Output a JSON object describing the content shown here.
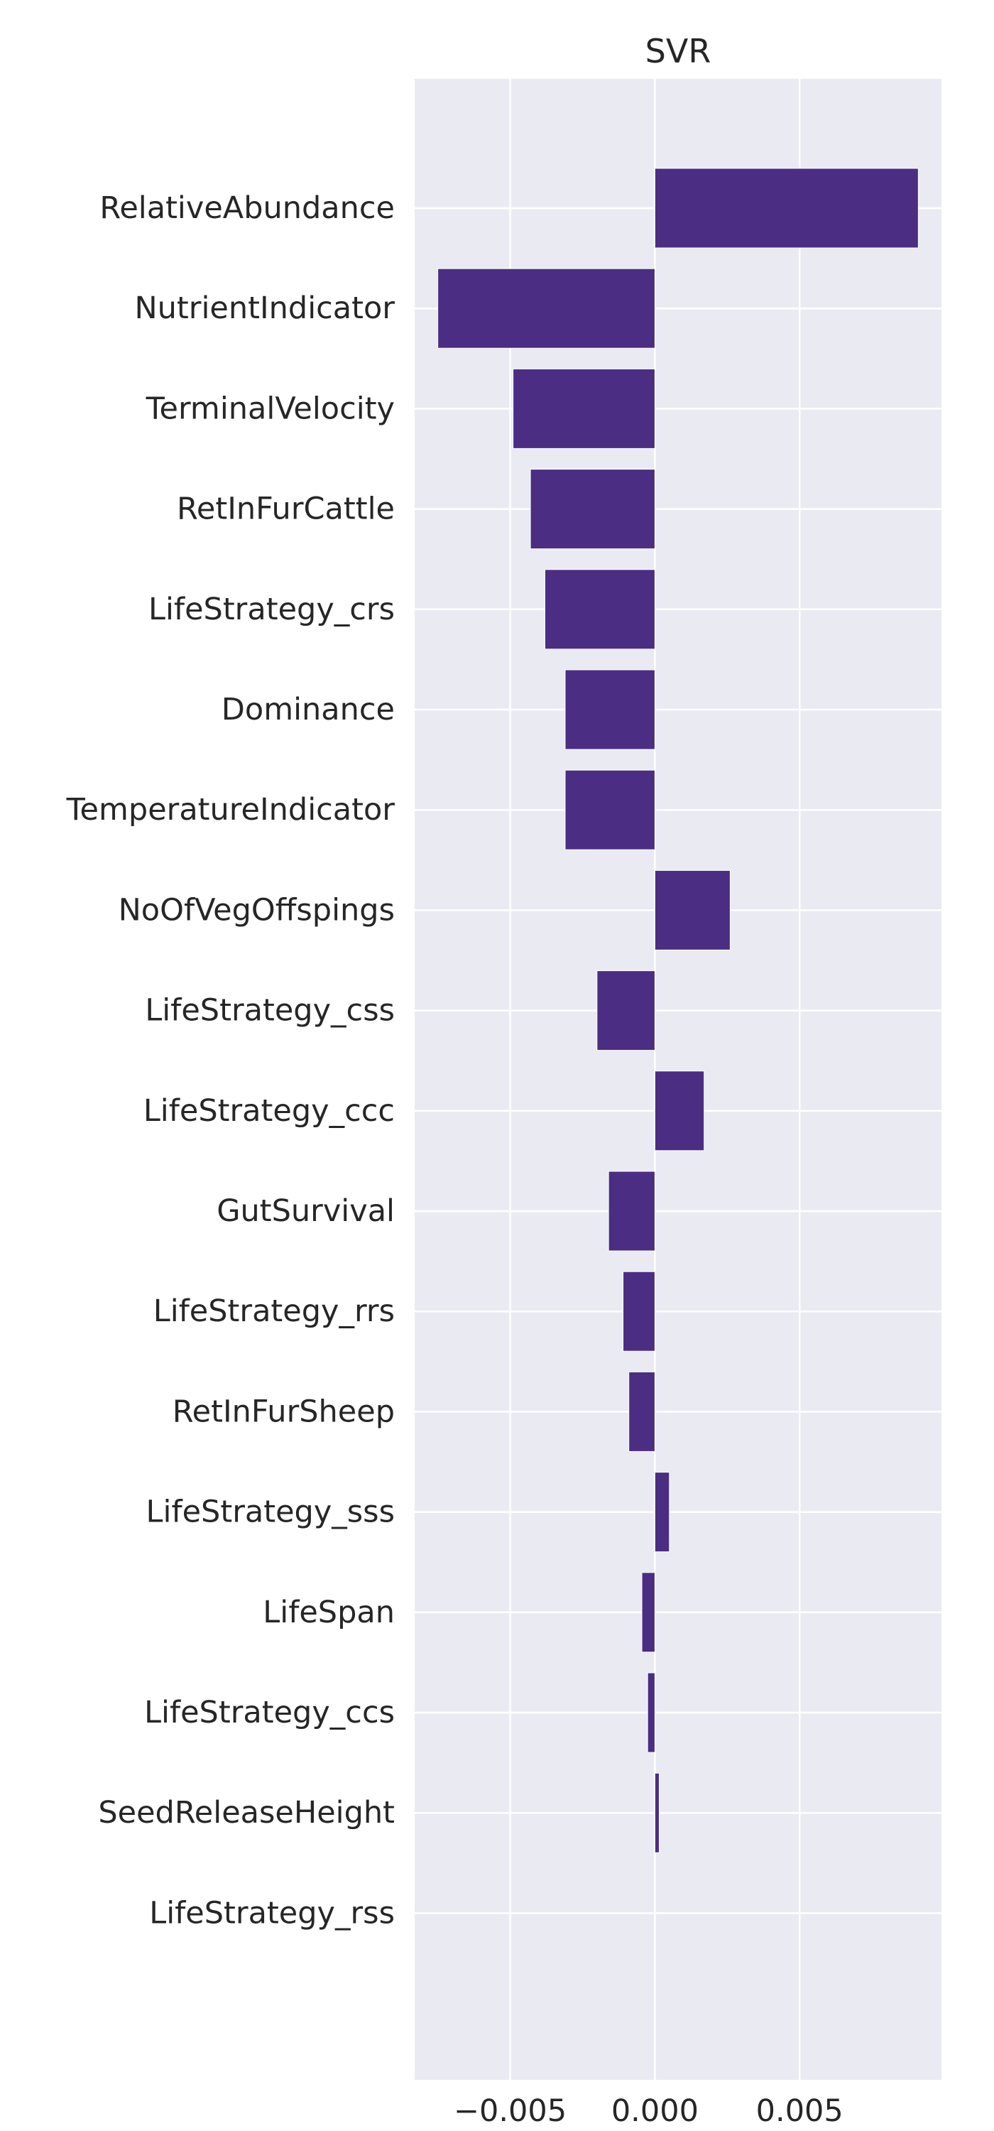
{
  "chart_data": {
    "type": "bar",
    "orientation": "horizontal",
    "title": "SVR",
    "xlabel": "",
    "ylabel": "",
    "categories": [
      "RelativeAbundance",
      "NutrientIndicator",
      "TerminalVelocity",
      "RetInFurCattle",
      "LifeStrategy_crs",
      "Dominance",
      "TemperatureIndicator",
      "NoOfVegOffspings",
      "LifeStrategy_css",
      "LifeStrategy_ccc",
      "GutSurvival",
      "LifeStrategy_rrs",
      "RetInFurSheep",
      "LifeStrategy_sss",
      "LifeSpan",
      "LifeStrategy_ccs",
      "SeedReleaseHeight",
      "LifeStrategy_rss"
    ],
    "values": [
      0.0091,
      -0.0075,
      -0.0049,
      -0.0043,
      -0.0038,
      -0.0031,
      -0.0031,
      0.0026,
      -0.002,
      0.0017,
      -0.0016,
      -0.0011,
      -0.0009,
      0.0005,
      -0.00045,
      -0.00025,
      0.00015,
      0.0
    ],
    "xlim": [
      -0.0083,
      0.0099
    ],
    "xticks": [
      -0.005,
      0.0,
      0.005
    ],
    "xtick_labels": [
      "−0.005",
      "0.000",
      "0.005"
    ],
    "grid": true,
    "colors": {
      "bar": "#4b2d83",
      "plot_background": "#eaeaf2",
      "grid": "#ffffff",
      "text": "#262626"
    }
  }
}
